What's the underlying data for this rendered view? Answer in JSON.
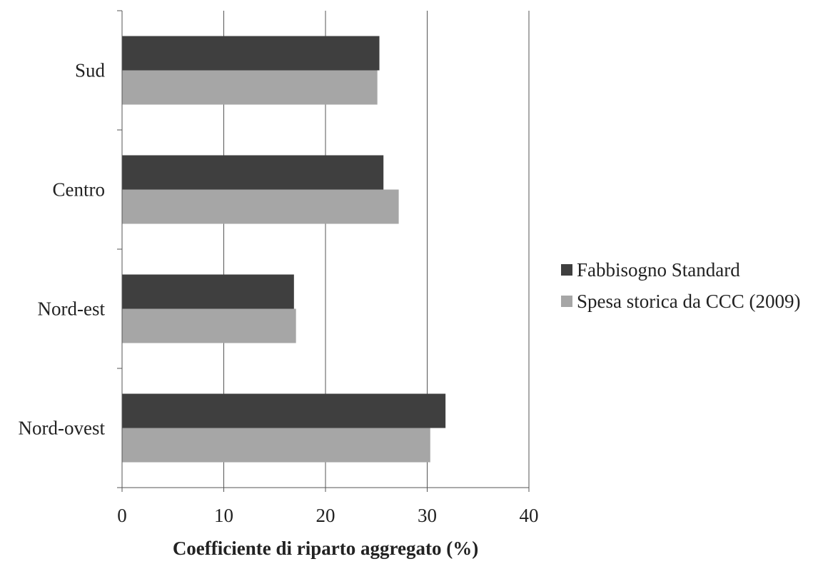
{
  "chart_data": {
    "type": "bar",
    "orientation": "horizontal",
    "categories": [
      "Sud",
      "Centro",
      "Nord-est",
      "Nord-ovest"
    ],
    "series": [
      {
        "name": "Fabbisogno Standard",
        "values": [
          25.3,
          25.7,
          16.9,
          31.8
        ],
        "color": "#3f3f3f"
      },
      {
        "name": "Spesa storica da CCC (2009)",
        "values": [
          25.1,
          27.2,
          17.1,
          30.3
        ],
        "color": "#a6a6a6"
      }
    ],
    "xlabel": "Coefficiente di riparto aggregato (%)",
    "ylabel": "",
    "title": "",
    "xlim": [
      0,
      40
    ],
    "xticks": [
      "0",
      "10",
      "20",
      "30",
      "40"
    ],
    "grid": "vertical",
    "legend_position": "right"
  }
}
